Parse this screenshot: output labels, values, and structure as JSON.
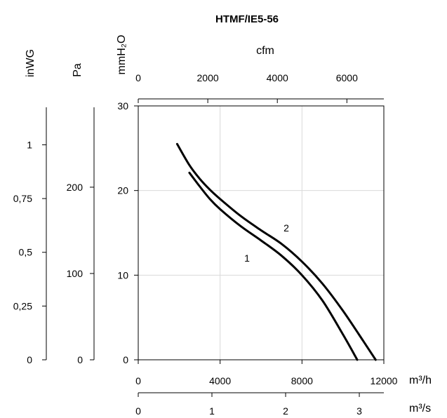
{
  "chart_data": {
    "type": "line",
    "title": "HTMF/IE5-56",
    "plot": {
      "x_range": [
        0,
        12000
      ],
      "y_range": [
        0,
        30
      ],
      "grid": true
    },
    "axes": {
      "bottom": {
        "unit": "m³/h",
        "min": 0,
        "max": 12000,
        "ticks": [
          0,
          4000,
          8000,
          12000
        ],
        "tick_labels": [
          "0",
          "4000",
          "8000",
          "12000"
        ]
      },
      "bottom2": {
        "unit": "m³/s",
        "min": 0,
        "max": 3.333,
        "ticks": [
          0,
          1,
          2,
          3
        ],
        "tick_labels": [
          "0",
          "1",
          "2",
          "3"
        ]
      },
      "top": {
        "unit": "cfm",
        "min": 0,
        "max": 7063,
        "ticks": [
          0,
          2000,
          4000,
          6000
        ],
        "tick_labels": [
          "0",
          "2000",
          "4000",
          "6000"
        ]
      },
      "left_mmh2o": {
        "unit": "mmH₂O",
        "min": 0,
        "max": 30,
        "ticks": [
          0,
          10,
          20,
          30
        ],
        "tick_labels": [
          "0",
          "10",
          "20",
          "30"
        ]
      },
      "left_pa": {
        "unit": "Pa",
        "min": 0,
        "max": 294.2,
        "ticks": [
          0,
          100,
          200
        ],
        "tick_labels": [
          "0",
          "100",
          "200"
        ]
      },
      "left_inwg": {
        "unit": "inWG",
        "min": 0,
        "max": 1.181,
        "ticks": [
          0,
          0.25,
          0.5,
          0.75,
          1
        ],
        "tick_labels": [
          "0",
          "0,25",
          "0,5",
          "0,75",
          "1"
        ]
      }
    },
    "series": [
      {
        "label": "1",
        "x": [
          2500,
          3000,
          3500,
          4000,
          5000,
          6000,
          7000,
          8000,
          9000,
          10000,
          10700
        ],
        "y": [
          22.1,
          20.5,
          19.0,
          17.8,
          15.8,
          14.1,
          12.3,
          10.0,
          7.0,
          3.0,
          0.0
        ]
      },
      {
        "label": "2",
        "x": [
          1900,
          2500,
          3000,
          3500,
          4000,
          5000,
          6000,
          7000,
          8000,
          9000,
          10000,
          11000,
          11600
        ],
        "y": [
          25.5,
          23.0,
          21.4,
          20.1,
          19.0,
          17.0,
          15.3,
          13.7,
          11.6,
          9.0,
          5.8,
          2.2,
          0.0
        ]
      }
    ]
  }
}
